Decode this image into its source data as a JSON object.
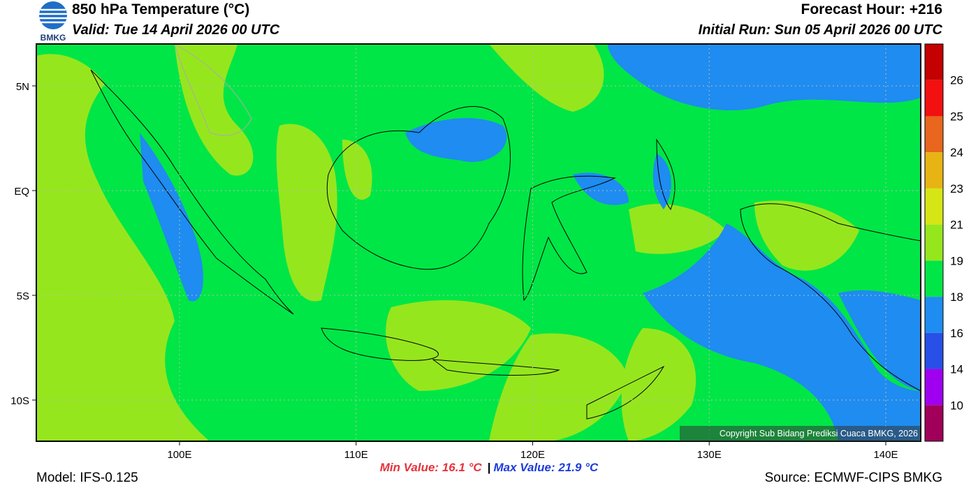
{
  "header": {
    "title": "850 hPa Temperature (°C)",
    "valid": "Valid: Tue 14 April 2026 00 UTC",
    "forecast_hour": "Forecast Hour: +216",
    "initial_run": "Initial Run: Sun 05 April 2026 00 UTC",
    "logo": "BMKG"
  },
  "map": {
    "lat_labels": [
      "5N",
      "EQ",
      "5S",
      "10S"
    ],
    "lon_labels": [
      "100E",
      "110E",
      "120E",
      "130E",
      "140E"
    ],
    "copyright": "Copyright Sub Bidang Prediksi Cuaca BMKG, 2026"
  },
  "colorbar": {
    "labels": [
      26,
      25,
      24,
      23,
      21,
      19,
      18,
      16,
      14,
      10
    ],
    "colors": [
      "#c40000",
      "#f21010",
      "#e8661e",
      "#e8b414",
      "#d6e614",
      "#96e61e",
      "#00e646",
      "#1e8cf0",
      "#2850e6",
      "#a000f0",
      "#a0005a"
    ]
  },
  "footer": {
    "model": "Model: IFS-0.125",
    "min": "Min Value: 16.1 °C",
    "separator": "|",
    "max": "Max Value: 21.9 °C",
    "source": "Source: ECMWF-CIPS BMKG"
  }
}
